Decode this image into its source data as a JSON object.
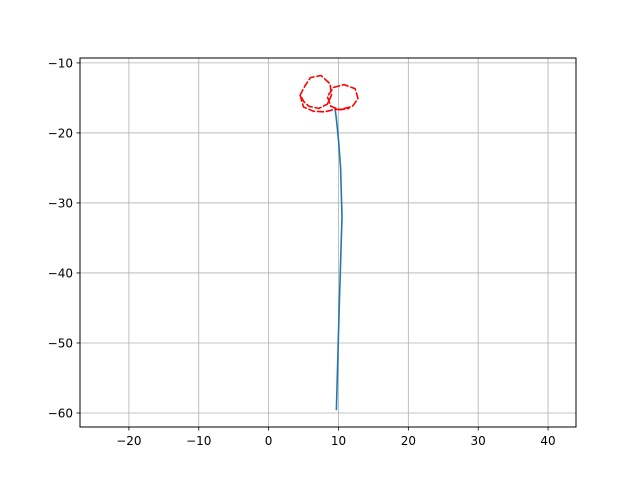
{
  "chart_data": {
    "type": "line",
    "title": "",
    "xlabel": "",
    "ylabel": "",
    "xlim": [
      -27,
      44
    ],
    "ylim": [
      -62,
      -9.3
    ],
    "xticks": [
      -20,
      -10,
      0,
      10,
      20,
      30,
      40
    ],
    "yticks": [
      -10,
      -20,
      -30,
      -40,
      -50,
      -60
    ],
    "xtick_labels": [
      "−20",
      "−10",
      "0",
      "10",
      "20",
      "30",
      "40"
    ],
    "ytick_labels": [
      "−10",
      "−20",
      "−30",
      "−40",
      "−50",
      "−60"
    ],
    "grid": true,
    "series": [
      {
        "color": "#1f77b4",
        "style": "solid",
        "x": [
          9.7,
          10.1,
          10.5,
          10.3,
          10.0,
          9.7,
          9.5
        ],
        "y": [
          -59.5,
          -45.0,
          -32.0,
          -25.0,
          -21.0,
          -18.0,
          -16.5
        ]
      },
      {
        "color": "#ff0000",
        "style": "dashed",
        "x": [
          4.5,
          5.2,
          6.0,
          7.5,
          8.8,
          9.0,
          8.4,
          7.2,
          5.8,
          5.1,
          4.5,
          5.0,
          6.4,
          8.0,
          9.2,
          10.5,
          12.0,
          12.8,
          12.4,
          10.8,
          9.3,
          8.4,
          8.9,
          10.2,
          11.5
        ],
        "y": [
          -14.6,
          -13.3,
          -12.1,
          -11.8,
          -13.0,
          -14.6,
          -15.9,
          -16.5,
          -16.2,
          -15.6,
          -14.6,
          -16.3,
          -16.9,
          -17.0,
          -16.7,
          -16.6,
          -16.2,
          -15.1,
          -13.7,
          -13.1,
          -13.5,
          -14.8,
          -16.2,
          -16.7,
          -16.5
        ]
      }
    ]
  }
}
